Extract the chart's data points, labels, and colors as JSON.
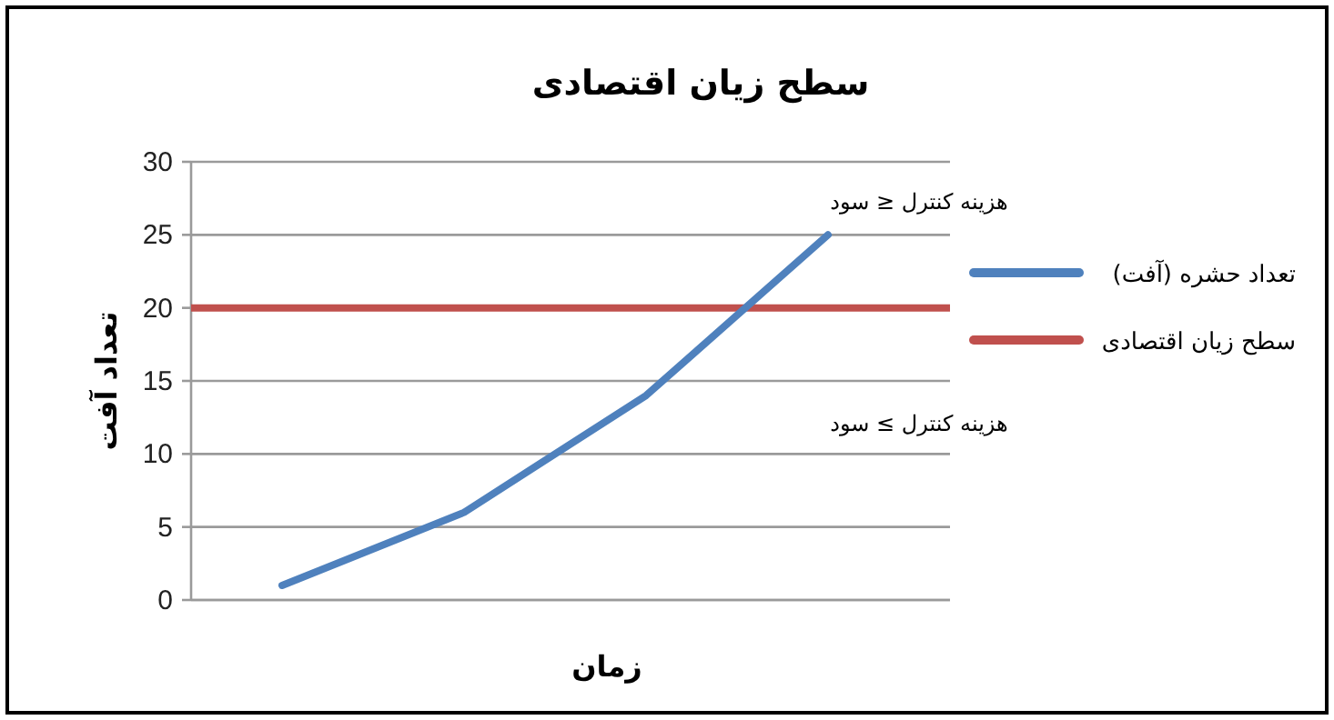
{
  "chart_data": {
    "type": "line",
    "title": "سطح زیان اقتصادی",
    "xlabel": "زمان",
    "ylabel": "تعداد آفت",
    "categories": [
      null,
      null,
      null,
      null
    ],
    "series": [
      {
        "name": "تعداد حشره (آفت)",
        "color": "#4f81bd",
        "values": [
          1,
          6,
          14,
          25
        ]
      }
    ],
    "ref_lines": [
      {
        "axis": "y",
        "value": 20,
        "label": "سطح زیان اقتصادی",
        "color": "#c0504d"
      }
    ],
    "annotations": [
      "هزینه کنترل ≤ سود",
      "هزینه کنترل ≥ سود"
    ],
    "ylim": [
      0,
      30
    ],
    "yticks": [
      0,
      5,
      10,
      15,
      20,
      25,
      30
    ],
    "grid": "y",
    "legend": "right",
    "marker": "none",
    "line_style": "solid"
  }
}
